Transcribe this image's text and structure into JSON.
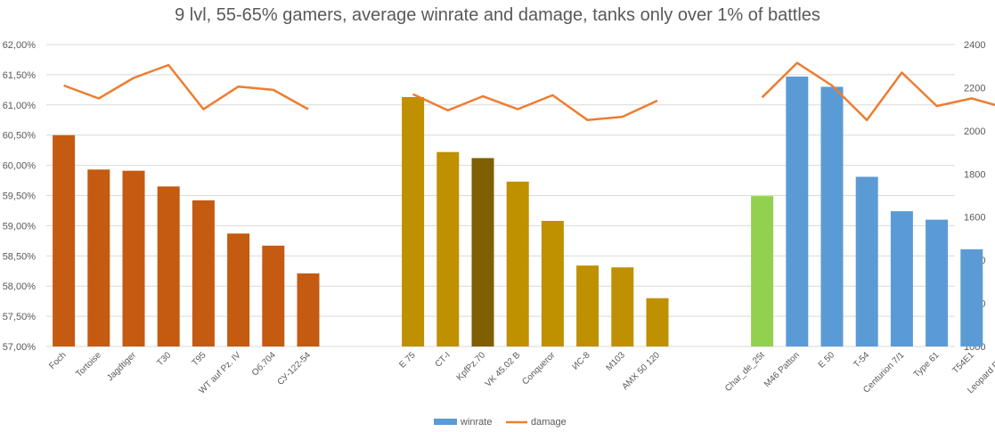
{
  "chart_data": {
    "type": "bar",
    "title": "9 lvl, 55-65% gamers, average winrate and damage, tanks only over 1% of battles",
    "y_left": {
      "ticks": [
        "57,00%",
        "57,50%",
        "58,00%",
        "58,50%",
        "59,00%",
        "59,50%",
        "60,00%",
        "60,50%",
        "61,00%",
        "61,50%",
        "62,00%"
      ],
      "min": 57.0,
      "max": 62.0
    },
    "y_right": {
      "ticks": [
        "1000",
        "1200",
        "1400",
        "1600",
        "1800",
        "2000",
        "2200",
        "2400"
      ],
      "min": 1000,
      "max": 2400
    },
    "groups": [
      {
        "categories": [
          "Foch",
          "Tortoise",
          "Jagdtiger",
          "T30",
          "T95",
          "WT auf Pz. IV",
          "Об.704",
          "СУ-122-54"
        ],
        "winrate": [
          60.5,
          59.93,
          59.91,
          59.65,
          59.42,
          58.87,
          58.67,
          58.21
        ],
        "damage": [
          2210,
          2150,
          2245,
          2305,
          2100,
          2205,
          2190,
          2100
        ],
        "colors": [
          "#C55A11",
          "#C55A11",
          "#C55A11",
          "#C55A11",
          "#C55A11",
          "#C55A11",
          "#C55A11",
          "#C55A11"
        ]
      },
      {
        "categories": [
          "E 75",
          "СТ-I",
          "KpfPz.70",
          "VK 45.02 B",
          "Conqueror",
          "ИС-8",
          "M103",
          "AMX 50 120"
        ],
        "winrate": [
          61.13,
          60.22,
          60.12,
          59.73,
          59.08,
          58.34,
          58.31,
          57.8
        ],
        "damage": [
          2170,
          2095,
          2160,
          2100,
          2165,
          2050,
          2065,
          2140
        ],
        "colors": [
          "#BF9000",
          "#BF9000",
          "#7F6000",
          "#BF9000",
          "#BF9000",
          "#BF9000",
          "#BF9000",
          "#BF9000"
        ]
      },
      {
        "categories": [
          "Char_de_25t",
          "M46 Patton",
          "E 50",
          "T-54",
          "Centurion 7/1",
          "Type 61",
          "T54E1",
          "Leopard PT A"
        ],
        "winrate": [
          59.49,
          61.47,
          61.3,
          59.81,
          59.24,
          59.1,
          58.61,
          58.6
        ],
        "damage": [
          2155,
          2315,
          2210,
          2050,
          2270,
          2115,
          2150,
          2105
        ],
        "colors": [
          "#92D050",
          "#5B9BD5",
          "#5B9BD5",
          "#5B9BD5",
          "#5B9BD5",
          "#5B9BD5",
          "#5B9BD5",
          "#5B9BD5"
        ]
      }
    ],
    "legend": [
      {
        "label": "winrate",
        "color": "#5B9BD5"
      },
      {
        "label": "damage",
        "color": "#ED7D31"
      }
    ],
    "legend_position": "bottom",
    "grid": true
  }
}
